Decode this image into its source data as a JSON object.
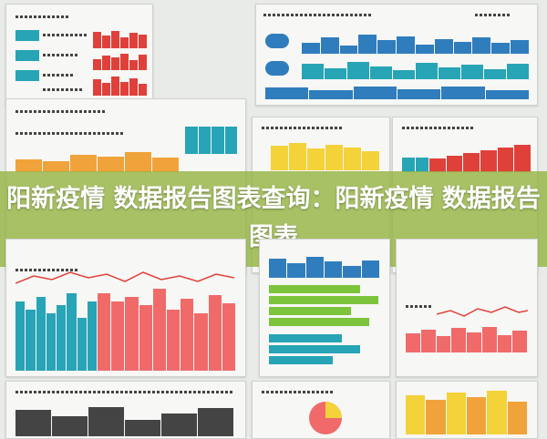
{
  "banner": {
    "title": "阳新疫情 数据报告图表查询：阳新疫情 数据报告图表"
  },
  "colors": {
    "teal": "#27a4b5",
    "red": "#e0403a",
    "orange": "#f0a33a",
    "yellow": "#f3d23a",
    "green": "#7cc43c",
    "blue": "#2f7dbd",
    "pink": "#f06a6a",
    "banner": "#96b446"
  },
  "panels": [
    {
      "name": "top-left-infographic-panel"
    },
    {
      "name": "top-right-infographic-panel"
    },
    {
      "name": "middle-left-infographic-panel"
    },
    {
      "name": "middle-center-infographic-panel"
    },
    {
      "name": "middle-right-infographic-panel"
    },
    {
      "name": "bottom-left-infographic-panel"
    },
    {
      "name": "bottom-center-infographic-panel"
    },
    {
      "name": "bottom-right-infographic-panel"
    }
  ]
}
